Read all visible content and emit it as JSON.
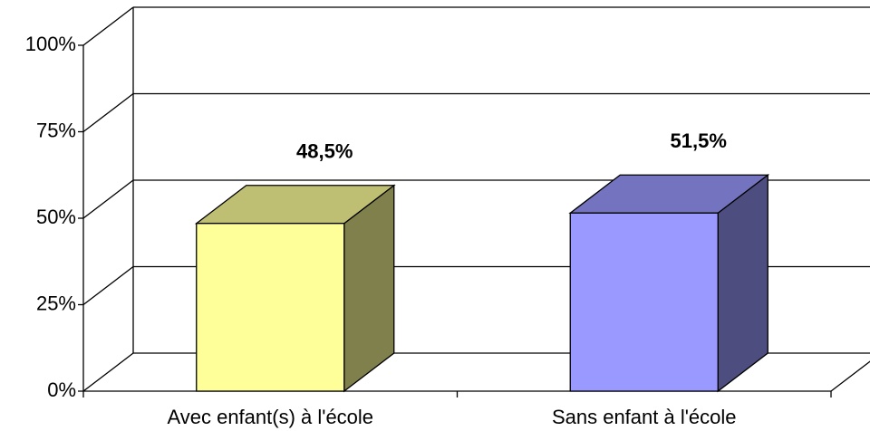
{
  "chart_data": {
    "type": "bar3d",
    "categories": [
      "Avec enfant(s) à l'école",
      "Sans enfant à l'école"
    ],
    "values": [
      48.5,
      51.5
    ],
    "value_labels": [
      "48,5%",
      "51,5%"
    ],
    "colors": [
      "#ffff99",
      "#9999ff"
    ],
    "ylim": [
      0,
      100
    ],
    "yticks": [
      {
        "value": 0,
        "label": "0%"
      },
      {
        "value": 25,
        "label": "25%"
      },
      {
        "value": 50,
        "label": "50%"
      },
      {
        "value": 75,
        "label": "75%"
      },
      {
        "value": 100,
        "label": "100%"
      }
    ],
    "grid": true
  }
}
